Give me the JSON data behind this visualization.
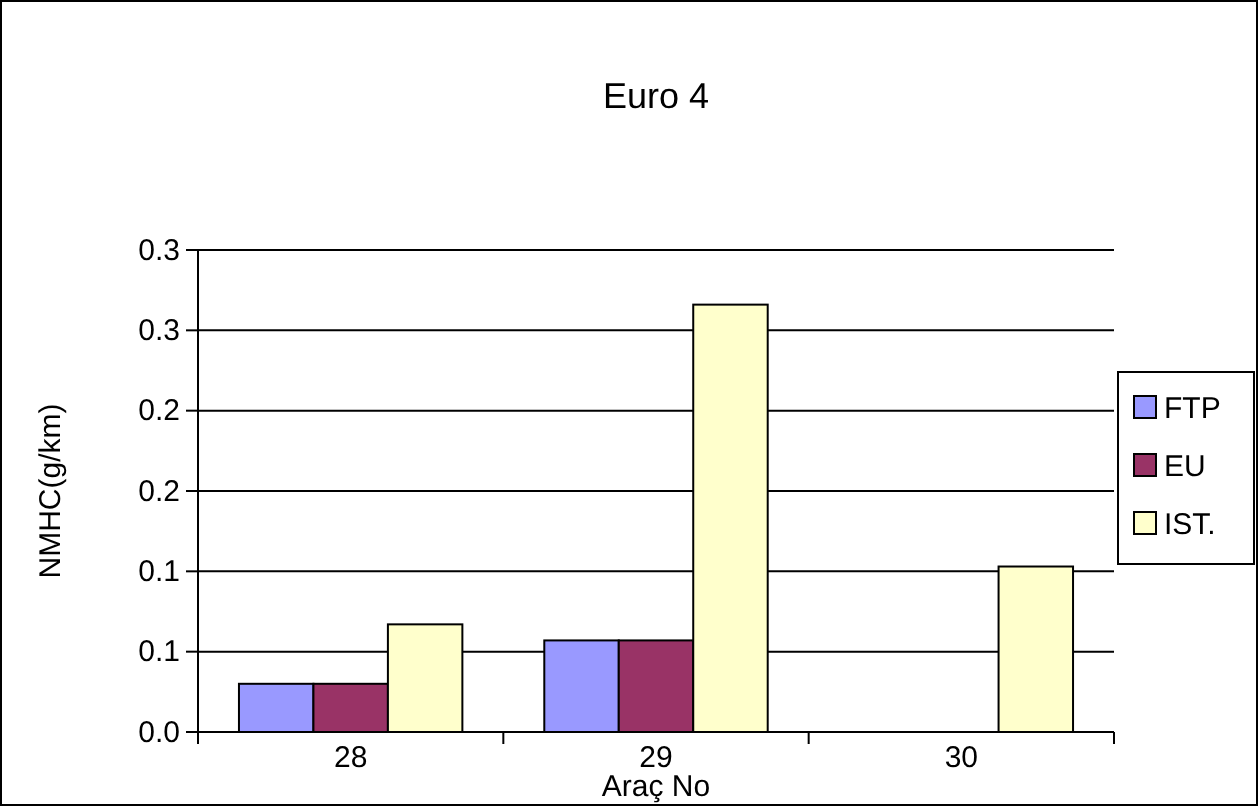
{
  "chart_data": {
    "type": "bar",
    "title": "Euro 4",
    "xlabel": "Araç No",
    "ylabel": "NMHC(g/km)",
    "categories": [
      "28",
      "29",
      "30"
    ],
    "series": [
      {
        "name": "FTP",
        "color": "#9999ff",
        "values": [
          0.03,
          0.057,
          null
        ]
      },
      {
        "name": "EU",
        "color": "#993366",
        "values": [
          0.03,
          0.057,
          null
        ]
      },
      {
        "name": "IST.",
        "color": "#ffffcc",
        "values": [
          0.067,
          0.266,
          0.103
        ]
      }
    ],
    "ylim": [
      0,
      0.3
    ],
    "yticks": [
      {
        "value": 0,
        "label": "0.0"
      },
      {
        "value": 0.05,
        "label": "0.1"
      },
      {
        "value": 0.1,
        "label": "0.1"
      },
      {
        "value": 0.15,
        "label": "0.2"
      },
      {
        "value": 0.2,
        "label": "0.2"
      },
      {
        "value": 0.25,
        "label": "0.3"
      },
      {
        "value": 0.3,
        "label": "0.3"
      }
    ],
    "grid": "y",
    "legend": "right"
  }
}
